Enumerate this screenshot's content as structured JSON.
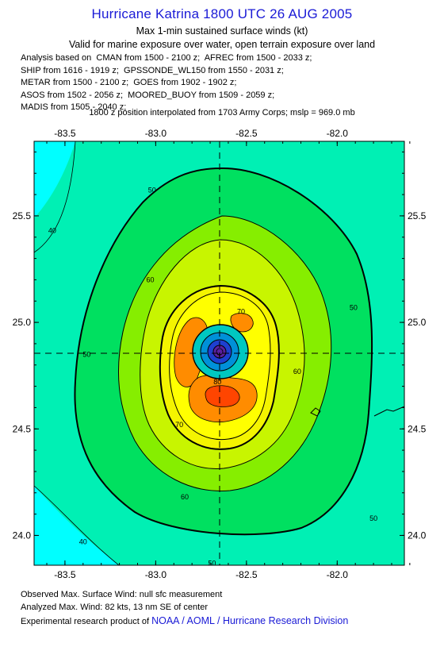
{
  "header": {
    "title": "Hurricane Katrina 1800 UTC 26 AUG 2005",
    "subtitle1": "Max 1-min sustained surface winds (kt)",
    "subtitle2": "Valid for marine exposure over water, open terrain exposure over land",
    "analysis_lines": [
      "Analysis based on  CMAN from 1500 - 2100 z;  AFREC from 1500 - 2033 z;",
      "SHIP from 1616 - 1919 z;  GPSSONDE_WL150 from 1550 - 2031 z;",
      "METAR from 1500 - 2100 z;  GOES from 1902 - 1902 z;",
      "ASOS from 1502 - 2056 z;  MOORED_BUOY from 1509 - 2059 z;",
      "MADIS from 1505 - 2040 z;"
    ],
    "position_note": "1800 z position interpolated from 1703 Army Corps; mslp = 969.0 mb"
  },
  "footer": {
    "observed": "Observed Max. Surface Wind: null sfc measurement",
    "analyzed": "Analyzed Max. Wind: 82 kts, 13 nm SE of center",
    "product_prefix": "Experimental research product of",
    "product_org": "NOAA / AOML / Hurricane Research Division"
  },
  "colors": {
    "c_lt40": "#00ffff",
    "c_40": "#00f0b4",
    "c_50": "#00e060",
    "c_55": "#86ee00",
    "c_60": "#c8f500",
    "c_65": "#f4f400",
    "c_70": "#ffff00",
    "c_75": "#ff8c00",
    "c_80": "#ff4500",
    "c_eye1": "#00c8c0",
    "c_eye2": "#0090d8",
    "c_eye3": "#1e40d0",
    "c_eye4": "#5a20a0",
    "text_blue": "#1a1ad6"
  },
  "chart_data": {
    "type": "contour",
    "title": "Hurricane Katrina 1800 UTC 26 AUG 2005",
    "quantity": "Max 1-min sustained surface winds (kt)",
    "x_ticks": [
      "-83.5",
      "-83.0",
      "-82.5",
      "-82.0"
    ],
    "y_ticks": [
      "25.5",
      "25.0",
      "24.5",
      "24.0"
    ],
    "x_tick_values": [
      -83.5,
      -83.0,
      -82.5,
      -82.0
    ],
    "y_tick_values": [
      25.5,
      25.0,
      24.5,
      24.0
    ],
    "xlim": [
      -83.67,
      -81.63
    ],
    "ylim": [
      23.86,
      25.85
    ],
    "center": {
      "lon": -82.65,
      "lat": 24.85
    },
    "max_wind_kt": 82,
    "contour_labels": [
      {
        "text": "40",
        "lon": -83.57,
        "lat": 25.43
      },
      {
        "text": "50",
        "lon": -83.02,
        "lat": 25.62
      },
      {
        "text": "50",
        "lon": -81.91,
        "lat": 25.07
      },
      {
        "text": "50",
        "lon": -83.38,
        "lat": 24.85
      },
      {
        "text": "60",
        "lon": -83.03,
        "lat": 25.2
      },
      {
        "text": "70",
        "lon": -82.53,
        "lat": 25.05
      },
      {
        "text": "60",
        "lon": -82.22,
        "lat": 24.77
      },
      {
        "text": "80",
        "lon": -82.66,
        "lat": 24.72
      },
      {
        "text": "70",
        "lon": -82.87,
        "lat": 24.52
      },
      {
        "text": "60",
        "lon": -82.84,
        "lat": 24.18
      },
      {
        "text": "50",
        "lon": -81.8,
        "lat": 24.08
      },
      {
        "text": "50",
        "lon": -82.69,
        "lat": 23.87
      },
      {
        "text": "40",
        "lon": -83.4,
        "lat": 23.97
      }
    ]
  }
}
